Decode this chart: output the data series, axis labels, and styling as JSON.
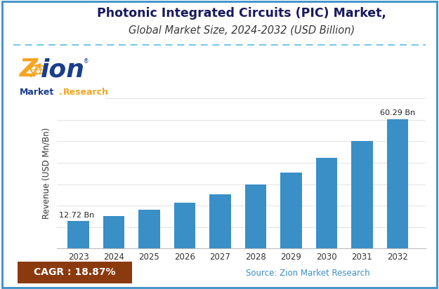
{
  "title_line1": "Photonic Integrated Circuits (PIC) Market,",
  "title_line2": "Global Market Size, 2024-2032 (USD Billion)",
  "years": [
    2023,
    2024,
    2025,
    2026,
    2027,
    2028,
    2029,
    2030,
    2031,
    2032
  ],
  "values": [
    12.72,
    15.07,
    17.92,
    21.25,
    25.22,
    29.93,
    35.5,
    42.13,
    50.0,
    60.29
  ],
  "bar_color": "#3a8fc7",
  "ylabel": "Revenue (USD Mn/Bn)",
  "first_label": "12.72 Bn",
  "last_label": "60.29 Bn",
  "cagr_text": "CAGR : 18.87%",
  "cagr_bg": "#8B3A0F",
  "source_text": "Source: Zion Market Research",
  "source_color": "#3a8fc7",
  "title_color": "#1a1a5e",
  "subtitle_color": "#3a3a3a",
  "bg_color": "#ffffff",
  "border_color": "#3a8fc7",
  "dashed_line_color": "#5bbce4",
  "ylim": [
    0,
    68
  ],
  "title_fontsize": 12.5,
  "subtitle_fontsize": 10.5,
  "logo_blue": "#1a3e8c",
  "logo_orange": "#f5a623"
}
